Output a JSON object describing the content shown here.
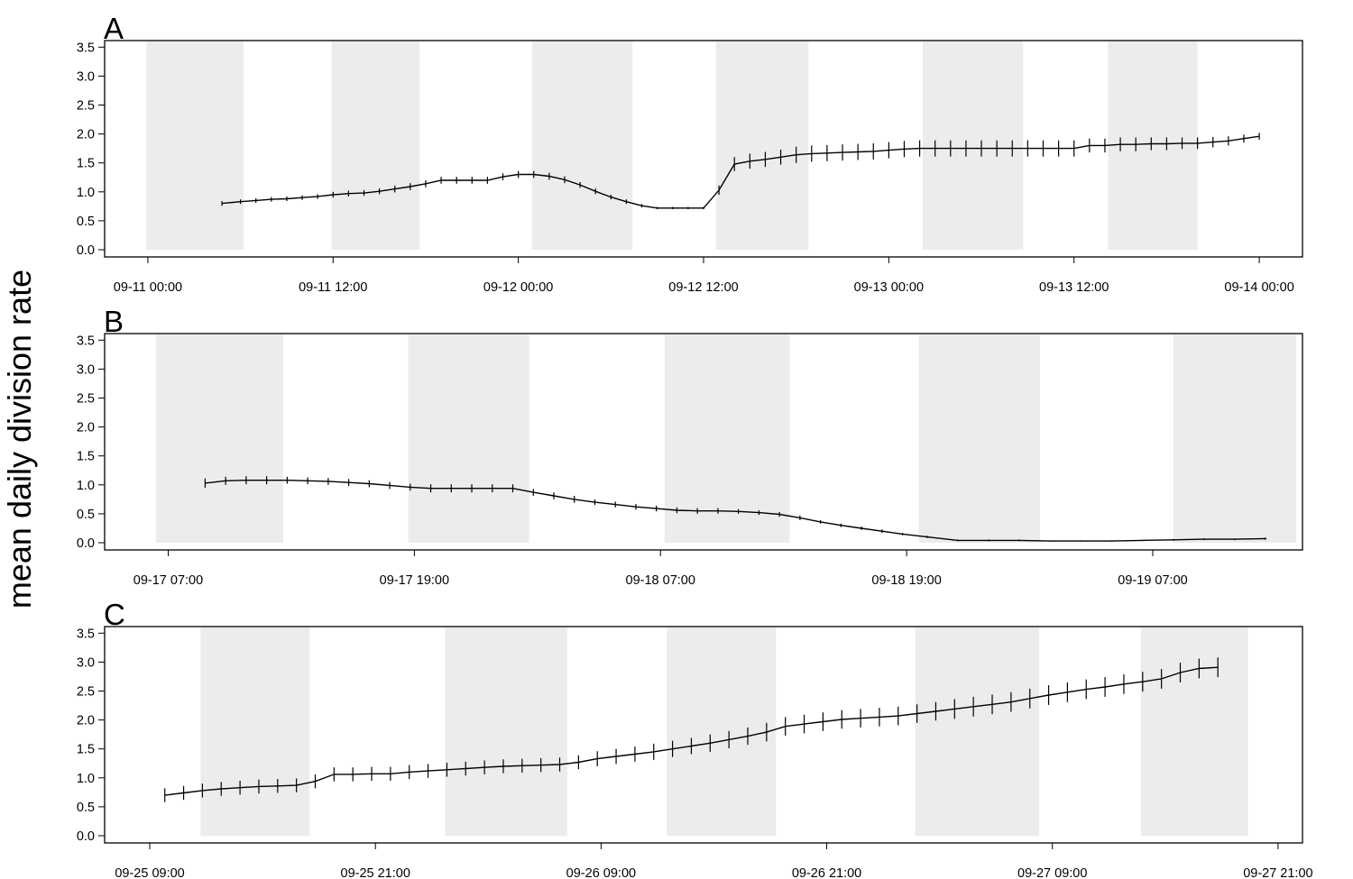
{
  "ylabel": "mean daily division rate",
  "chart_data": [
    {
      "type": "line",
      "panel_label": "A",
      "ylim": [
        0,
        3.6
      ],
      "y_ticks": [
        0.0,
        0.5,
        1.0,
        1.5,
        2.0,
        2.5,
        3.0,
        3.5
      ],
      "y_tick_labels": [
        "0.0",
        "0.5",
        "1.0",
        "1.5",
        "2.0",
        "2.5",
        "3.0",
        "3.5"
      ],
      "x_unit": "hours since 09-11 00:00",
      "xlim": [
        -2.8,
        74.8
      ],
      "x_ticks": [
        0,
        12,
        24,
        36,
        48,
        60,
        72
      ],
      "x_tick_labels": [
        "09-11 00:00",
        "09-11 12:00",
        "09-12 00:00",
        "09-12 12:00",
        "09-13 00:00",
        "09-13 12:00",
        "09-14 00:00"
      ],
      "dark_periods": [
        [
          -0.1,
          6.2
        ],
        [
          11.9,
          17.6
        ],
        [
          24.9,
          31.4
        ],
        [
          36.8,
          42.8
        ],
        [
          50.2,
          56.7
        ],
        [
          62.2,
          68.0
        ]
      ],
      "series": [
        {
          "x": [
            4.8,
            6.0,
            7.0,
            8.0,
            9.0,
            10.0,
            11.0,
            12.0,
            13.0,
            14.0,
            15.0,
            16.0,
            17.0,
            18.0,
            19.0,
            20.0,
            21.0,
            22.0,
            23.0,
            24.0,
            25.0,
            26.0,
            27.0,
            28.0,
            29.0,
            30.0,
            31.0,
            32.0,
            33.0,
            34.0,
            35.0,
            36.0,
            37.0,
            38.0,
            39.0,
            40.0,
            41.0,
            42.0,
            43.0,
            44.0,
            45.0,
            46.0,
            47.0,
            48.0,
            49.0,
            50.0,
            51.0,
            52.0,
            53.0,
            54.0,
            55.0,
            56.0,
            57.0,
            58.0,
            59.0,
            60.0,
            61.0,
            62.0,
            63.0,
            64.0,
            65.0,
            66.0,
            67.0,
            68.0,
            69.0,
            70.0,
            71.0,
            72.0
          ],
          "y": [
            0.8,
            0.83,
            0.85,
            0.87,
            0.88,
            0.9,
            0.92,
            0.95,
            0.97,
            0.98,
            1.01,
            1.05,
            1.09,
            1.14,
            1.2,
            1.2,
            1.2,
            1.2,
            1.26,
            1.3,
            1.3,
            1.27,
            1.21,
            1.12,
            1.01,
            0.91,
            0.83,
            0.76,
            0.72,
            0.72,
            0.72,
            0.72,
            1.03,
            1.48,
            1.53,
            1.56,
            1.6,
            1.64,
            1.66,
            1.67,
            1.68,
            1.69,
            1.7,
            1.72,
            1.74,
            1.75,
            1.75,
            1.75,
            1.75,
            1.75,
            1.75,
            1.75,
            1.75,
            1.75,
            1.75,
            1.75,
            1.8,
            1.8,
            1.82,
            1.82,
            1.83,
            1.83,
            1.84,
            1.84,
            1.86,
            1.88,
            1.92,
            1.96
          ],
          "err": [
            0.04,
            0.04,
            0.04,
            0.04,
            0.04,
            0.04,
            0.04,
            0.05,
            0.05,
            0.05,
            0.05,
            0.06,
            0.06,
            0.06,
            0.06,
            0.06,
            0.06,
            0.06,
            0.06,
            0.06,
            0.06,
            0.06,
            0.06,
            0.05,
            0.05,
            0.04,
            0.04,
            0.03,
            0.02,
            0.02,
            0.02,
            0.02,
            0.08,
            0.12,
            0.13,
            0.13,
            0.13,
            0.14,
            0.14,
            0.14,
            0.14,
            0.14,
            0.14,
            0.14,
            0.14,
            0.14,
            0.14,
            0.14,
            0.14,
            0.14,
            0.14,
            0.14,
            0.14,
            0.14,
            0.14,
            0.14,
            0.12,
            0.12,
            0.12,
            0.12,
            0.11,
            0.11,
            0.1,
            0.1,
            0.09,
            0.08,
            0.07,
            0.06
          ]
        }
      ]
    },
    {
      "type": "line",
      "panel_label": "B",
      "ylim": [
        0,
        3.6
      ],
      "y_ticks": [
        0.0,
        0.5,
        1.0,
        1.5,
        2.0,
        2.5,
        3.0,
        3.5
      ],
      "y_tick_labels": [
        "0.0",
        "0.5",
        "1.0",
        "1.5",
        "2.0",
        "2.5",
        "3.0",
        "3.5"
      ],
      "x_unit": "hours since 09-17 07:00",
      "xlim": [
        -3.1,
        55.3
      ],
      "x_ticks": [
        0,
        12,
        24,
        36,
        48
      ],
      "x_tick_labels": [
        "09-17 07:00",
        "09-17 19:00",
        "09-18 07:00",
        "09-18 19:00",
        "09-19 07:00"
      ],
      "dark_periods": [
        [
          -0.6,
          5.6
        ],
        [
          11.7,
          17.6
        ],
        [
          24.2,
          30.3
        ],
        [
          36.6,
          42.5
        ],
        [
          49.0,
          55.0
        ]
      ],
      "series": [
        {
          "x": [
            1.8,
            2.8,
            3.8,
            4.8,
            5.8,
            6.8,
            7.8,
            8.8,
            9.8,
            10.8,
            11.8,
            12.8,
            13.8,
            14.8,
            15.8,
            16.8,
            17.8,
            18.8,
            19.8,
            20.8,
            21.8,
            22.8,
            23.8,
            24.8,
            25.8,
            26.8,
            27.8,
            28.8,
            29.8,
            30.8,
            31.8,
            32.8,
            33.8,
            34.8,
            35.8,
            37.0,
            38.5,
            40.0,
            41.5,
            43.0,
            44.5,
            46.0,
            47.5,
            49.0,
            50.5,
            52.0,
            53.5
          ],
          "y": [
            1.03,
            1.07,
            1.08,
            1.08,
            1.08,
            1.07,
            1.06,
            1.04,
            1.02,
            0.99,
            0.96,
            0.94,
            0.94,
            0.94,
            0.94,
            0.94,
            0.87,
            0.81,
            0.75,
            0.7,
            0.66,
            0.62,
            0.59,
            0.56,
            0.55,
            0.55,
            0.54,
            0.52,
            0.49,
            0.43,
            0.36,
            0.3,
            0.25,
            0.2,
            0.15,
            0.1,
            0.04,
            0.04,
            0.04,
            0.03,
            0.03,
            0.03,
            0.04,
            0.05,
            0.06,
            0.06,
            0.07
          ],
          "err": [
            0.08,
            0.07,
            0.07,
            0.07,
            0.06,
            0.06,
            0.06,
            0.06,
            0.06,
            0.06,
            0.06,
            0.07,
            0.07,
            0.07,
            0.07,
            0.07,
            0.06,
            0.06,
            0.06,
            0.05,
            0.05,
            0.05,
            0.05,
            0.05,
            0.05,
            0.05,
            0.04,
            0.04,
            0.04,
            0.04,
            0.03,
            0.03,
            0.03,
            0.03,
            0.02,
            0.02,
            0.015,
            0.015,
            0.015,
            0.01,
            0.01,
            0.01,
            0.01,
            0.015,
            0.015,
            0.015,
            0.02
          ]
        }
      ]
    },
    {
      "type": "line",
      "panel_label": "C",
      "ylim": [
        0,
        3.6
      ],
      "y_ticks": [
        0.0,
        0.5,
        1.0,
        1.5,
        2.0,
        2.5,
        3.0,
        3.5
      ],
      "y_tick_labels": [
        "0.0",
        "0.5",
        "1.0",
        "1.5",
        "2.0",
        "2.5",
        "3.0",
        "3.5"
      ],
      "x_unit": "hours since 09-25 09:00",
      "xlim": [
        -2.4,
        61.3
      ],
      "x_ticks": [
        0,
        12,
        24,
        36,
        48,
        60
      ],
      "x_tick_labels": [
        "09-25 09:00",
        "09-25 21:00",
        "09-26 09:00",
        "09-26 21:00",
        "09-27 09:00",
        "09-27 21:00"
      ],
      "dark_periods": [
        [
          2.7,
          8.5
        ],
        [
          15.7,
          22.2
        ],
        [
          27.5,
          33.3
        ],
        [
          40.7,
          47.3
        ],
        [
          52.7,
          58.4
        ]
      ],
      "series": [
        {
          "x": [
            0.8,
            1.8,
            2.8,
            3.8,
            4.8,
            5.8,
            6.8,
            7.8,
            8.8,
            9.8,
            10.8,
            11.8,
            12.8,
            13.8,
            14.8,
            15.8,
            16.8,
            17.8,
            18.8,
            19.8,
            20.8,
            21.8,
            22.8,
            23.8,
            24.8,
            25.8,
            26.8,
            27.8,
            28.8,
            29.8,
            30.8,
            31.8,
            32.8,
            33.8,
            34.8,
            35.8,
            36.8,
            37.8,
            38.8,
            39.8,
            40.8,
            41.8,
            42.8,
            43.8,
            44.8,
            45.8,
            46.8,
            47.8,
            48.8,
            49.8,
            50.8,
            51.8,
            52.8,
            53.8,
            54.8,
            55.8,
            56.8
          ],
          "y": [
            0.7,
            0.74,
            0.78,
            0.81,
            0.83,
            0.85,
            0.86,
            0.87,
            0.94,
            1.06,
            1.06,
            1.07,
            1.07,
            1.1,
            1.12,
            1.14,
            1.16,
            1.18,
            1.2,
            1.21,
            1.22,
            1.23,
            1.27,
            1.33,
            1.37,
            1.41,
            1.45,
            1.5,
            1.55,
            1.6,
            1.66,
            1.72,
            1.79,
            1.89,
            1.93,
            1.97,
            2.01,
            2.03,
            2.05,
            2.07,
            2.11,
            2.15,
            2.19,
            2.23,
            2.27,
            2.31,
            2.37,
            2.43,
            2.48,
            2.53,
            2.57,
            2.62,
            2.66,
            2.71,
            2.82,
            2.89,
            2.91
          ],
          "err": [
            0.12,
            0.12,
            0.12,
            0.12,
            0.12,
            0.12,
            0.12,
            0.12,
            0.12,
            0.12,
            0.12,
            0.12,
            0.12,
            0.12,
            0.12,
            0.12,
            0.12,
            0.12,
            0.12,
            0.12,
            0.12,
            0.12,
            0.12,
            0.13,
            0.13,
            0.13,
            0.14,
            0.14,
            0.14,
            0.15,
            0.15,
            0.15,
            0.16,
            0.16,
            0.16,
            0.16,
            0.16,
            0.16,
            0.16,
            0.16,
            0.16,
            0.16,
            0.17,
            0.17,
            0.17,
            0.17,
            0.17,
            0.17,
            0.17,
            0.17,
            0.17,
            0.17,
            0.17,
            0.17,
            0.17,
            0.17,
            0.17
          ]
        }
      ]
    }
  ]
}
